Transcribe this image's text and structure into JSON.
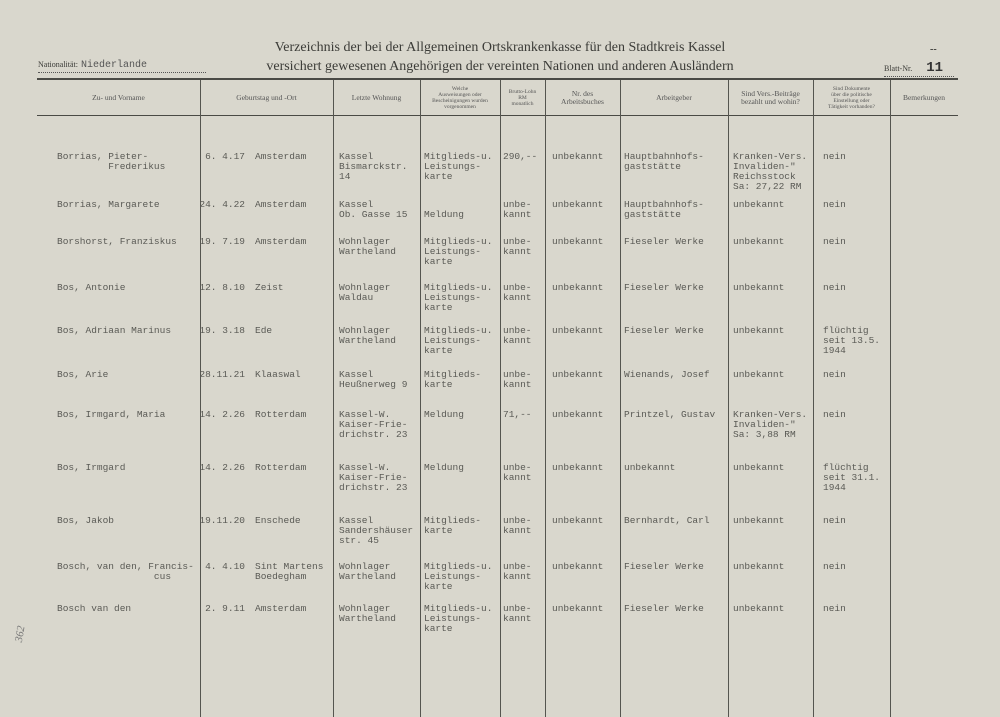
{
  "header": {
    "title_line1": "Verzeichnis der bei der Allgemeinen Ortskrankenkasse für den Stadtkreis Kassel",
    "title_line2": "versichert gewesenen Angehörigen der vereinten Nationen und anderen Ausländern",
    "nationality_label": "Nationalität:",
    "nationality_value": "Niederlande",
    "sheet_label": "Blatt-Nr.",
    "sheet_value": "11",
    "sheet_mark": "--"
  },
  "columns": [
    "Zu- und Vorname",
    "Geburtstag und -Ort",
    "Letzte Wohnung",
    "Welche\nAusweisungen oder\nBescheinigungen wurden\nvorgenommen",
    "Brutto-Lohn\nRM\nmonatlich",
    "Nr. des\nArbeitsbuches",
    "Arbeitgeber",
    "Sind Vers.-Beiträge\nbezahlt und wohin?",
    "Sind Dokumente\nüber die politische\nEinstellung oder\nTätigkeit vorhanden?",
    "Bemerkungen"
  ],
  "rows": [
    {
      "name": "Borrias, Pieter-\n         Frederikus",
      "birth": "6. 4.17",
      "place": "Amsterdam",
      "address": "Kassel\nBismarckstr.\n14",
      "docs": "Mitglieds-u.\nLeistungs-\nkarte",
      "wage": "290,--",
      "book": "unbekannt",
      "employer": "Hauptbahnhofs-\ngaststätte",
      "contrib": "Kranken-Vers.\nInvaliden-\"\nReichsstock\nSa: 27,22 RM",
      "political": "nein",
      "remarks": ""
    },
    {
      "name": "Borrias, Margarete",
      "birth": "24. 4.22",
      "place": "Amsterdam",
      "address": "Kassel\nOb. Gasse 15",
      "docs": "\nMeldung",
      "wage": "unbe-\nkannt",
      "book": "unbekannt",
      "employer": "Hauptbahnhofs-\ngaststätte",
      "contrib": "unbekannt",
      "political": "nein",
      "remarks": ""
    },
    {
      "name": "Borshorst, Franziskus",
      "birth": "19. 7.19",
      "place": "Amsterdam",
      "address": "Wohnlager\nWartheland",
      "docs": "Mitglieds-u.\nLeistungs-\nkarte",
      "wage": "unbe-\nkannt",
      "book": "unbekannt",
      "employer": "Fieseler Werke",
      "contrib": "unbekannt",
      "political": "nein",
      "remarks": ""
    },
    {
      "name": "Bos, Antonie",
      "birth": "12. 8.10",
      "place": "Zeist",
      "address": "Wohnlager\nWaldau",
      "docs": "Mitglieds-u.\nLeistungs-\nkarte",
      "wage": "unbe-\nkannt",
      "book": "unbekannt",
      "employer": "Fieseler Werke",
      "contrib": "unbekannt",
      "political": "nein",
      "remarks": ""
    },
    {
      "name": "Bos, Adriaan Marinus",
      "birth": "19. 3.18",
      "place": "Ede",
      "address": "Wohnlager\nWartheland",
      "docs": "Mitglieds-u.\nLeistungs-\nkarte",
      "wage": "unbe-\nkannt",
      "book": "unbekannt",
      "employer": "Fieseler Werke",
      "contrib": "unbekannt",
      "political": "flüchtig\nseit 13.5.\n1944",
      "remarks": ""
    },
    {
      "name": "Bos, Arie",
      "birth": "28.11.21",
      "place": "Klaaswal",
      "address": "Kassel\nHeußnerweg 9",
      "docs": "Mitglieds-\nkarte",
      "wage": "unbe-\nkannt",
      "book": "unbekannt",
      "employer": "Wienands, Josef",
      "contrib": "unbekannt",
      "political": "nein",
      "remarks": ""
    },
    {
      "name": "Bos, Irmgard, Maria",
      "birth": "14. 2.26",
      "place": "Rotterdam",
      "address": "Kassel-W.\nKaiser-Frie-\ndrichstr. 23",
      "docs": "Meldung",
      "wage": "71,--",
      "book": "unbekannt",
      "employer": "Printzel, Gustav",
      "contrib": "Kranken-Vers.\nInvaliden-\"\nSa: 3,88 RM",
      "political": "nein",
      "remarks": ""
    },
    {
      "name": "Bos, Irmgard",
      "birth": "14. 2.26",
      "place": "Rotterdam",
      "address": "Kassel-W.\nKaiser-Frie-\ndrichstr. 23",
      "docs": "Meldung",
      "wage": "unbe-\nkannt",
      "book": "unbekannt",
      "employer": "unbekannt",
      "contrib": "unbekannt",
      "political": "flüchtig\nseit 31.1.\n1944",
      "remarks": ""
    },
    {
      "name": "Bos, Jakob",
      "birth": "19.11.20",
      "place": "Enschede",
      "address": "Kassel\nSandershäuser\nstr. 45",
      "docs": "Mitglieds-\nkarte",
      "wage": "unbe-\nkannt",
      "book": "unbekannt",
      "employer": "Bernhardt, Carl",
      "contrib": "unbekannt",
      "political": "nein",
      "remarks": ""
    },
    {
      "name": "Bosch, van den, Francis-\n                 cus",
      "birth": "4. 4.10",
      "place": "Sint Martens\nBoedegham",
      "address": "Wohnlager\nWartheland",
      "docs": "Mitglieds-u.\nLeistungs-\nkarte",
      "wage": "unbe-\nkannt",
      "book": "unbekannt",
      "employer": "Fieseler Werke",
      "contrib": "unbekannt",
      "political": "nein",
      "remarks": ""
    },
    {
      "name": "Bosch van den",
      "birth": "2. 9.11",
      "place": "Amsterdam",
      "address": "Wohnlager\nWartheland",
      "docs": "Mitglieds-u.\nLeistungs-\nkarte",
      "wage": "unbe-\nkannt",
      "book": "unbekannt",
      "employer": "Fieseler Werke",
      "contrib": "unbekannt",
      "political": "nein",
      "remarks": ""
    }
  ],
  "margin_note": "362"
}
